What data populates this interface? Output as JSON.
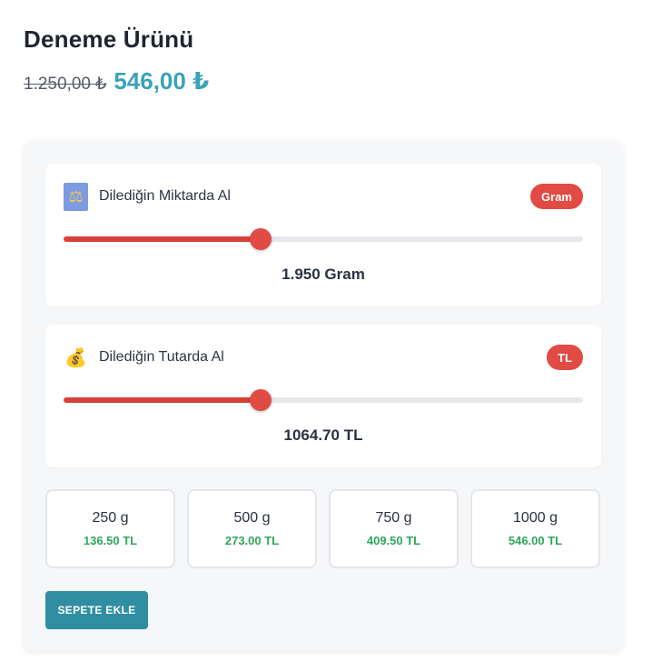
{
  "product": {
    "title": "Deneme Ürünü",
    "old_price": "1.250,00 ₺",
    "new_price": "546,00 ₺"
  },
  "weight_card": {
    "icon": "balance-scale-icon",
    "label": "Dilediğin Miktarda Al",
    "badge": "Gram",
    "slider_fraction": 0.38,
    "value": "1.950 Gram"
  },
  "amount_card": {
    "icon": "money-bag-icon",
    "label": "Dilediğin Tutarda Al",
    "badge": "TL",
    "slider_fraction": 0.38,
    "value": "1064.70 TL"
  },
  "options": [
    {
      "weight": "250 g",
      "price": "136.50 TL"
    },
    {
      "weight": "500 g",
      "price": "273.00 TL"
    },
    {
      "weight": "750 g",
      "price": "409.50 TL"
    },
    {
      "weight": "1000 g",
      "price": "546.00 TL"
    }
  ],
  "add_to_cart_label": "SEPETE EKLE",
  "colors": {
    "accent": "#3aa3b7",
    "slider": "#e24a44",
    "button": "#2f8ea2",
    "option_price": "#2fa65c"
  }
}
